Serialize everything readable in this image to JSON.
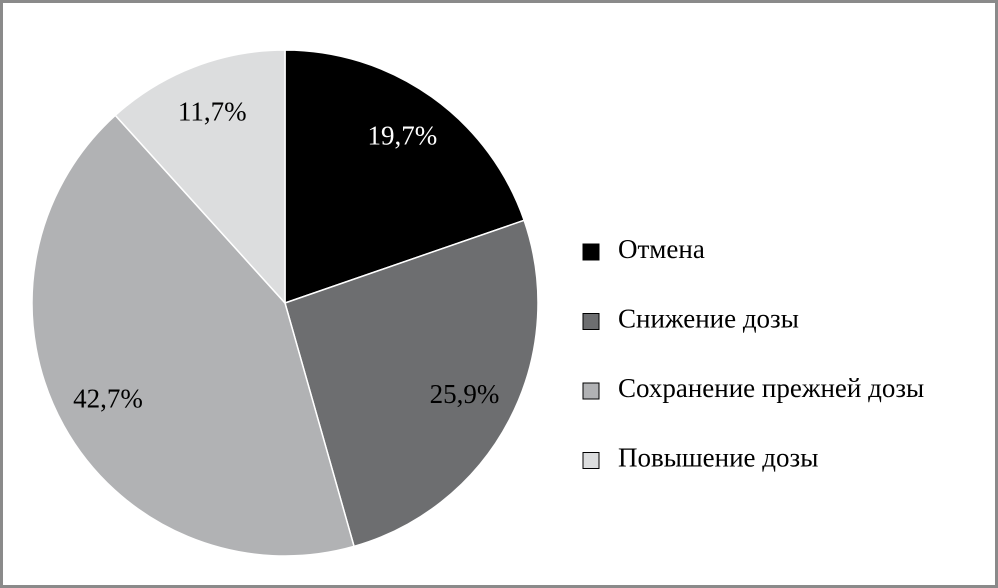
{
  "chart_data": {
    "type": "pie",
    "categories": [
      "Отмена",
      "Снижение дозы",
      "Сохранение прежней дозы",
      "Повышение дозы"
    ],
    "values": [
      19.7,
      25.9,
      42.7,
      11.7
    ],
    "value_labels": [
      "19,7%",
      "25,9%",
      "42,7%",
      "11,7%"
    ],
    "colors": [
      "#000000",
      "#6d6e70",
      "#b1b2b4",
      "#dcddde"
    ],
    "legend": "right"
  }
}
